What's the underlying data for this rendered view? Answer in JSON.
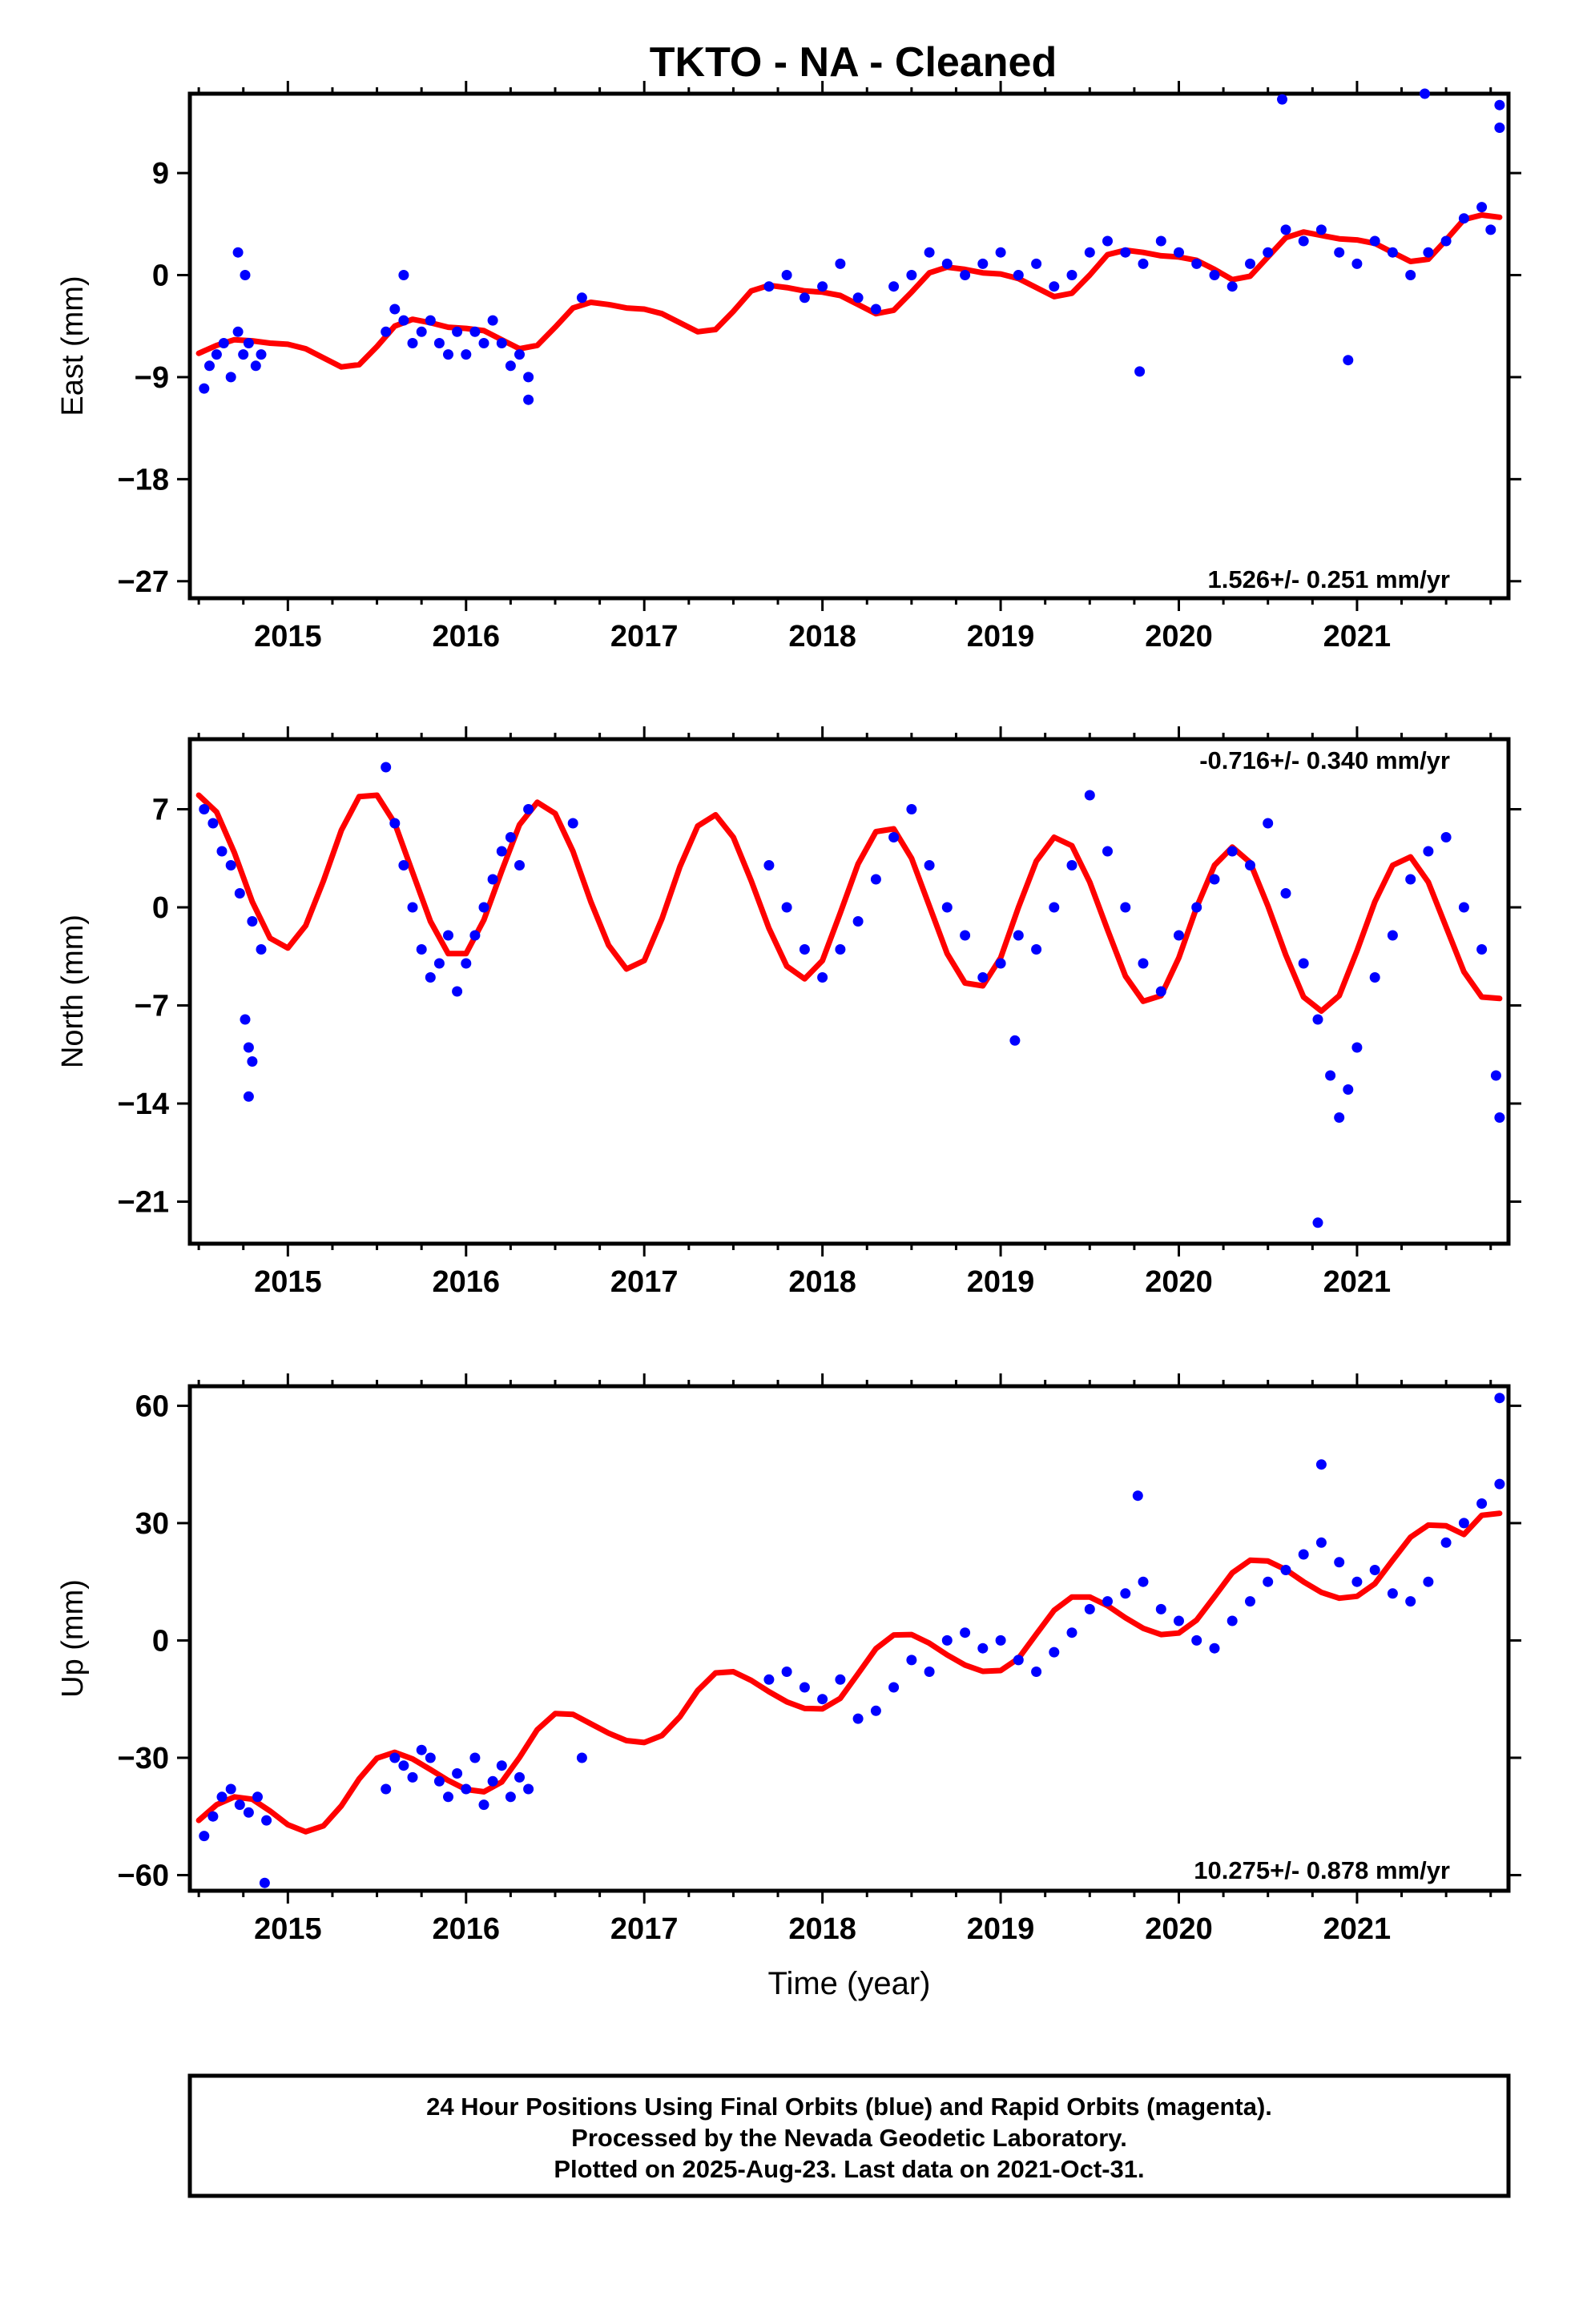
{
  "chart_data": [
    {
      "type": "scatter",
      "title": "TKTO  - NA - Cleaned",
      "ylabel": "East (mm)",
      "xlabel": "",
      "xlim": [
        2014.45,
        2021.85
      ],
      "ylim": [
        -28.5,
        16
      ],
      "xticks": [
        2015,
        2016,
        2017,
        2018,
        2019,
        2020,
        2021
      ],
      "yticks": [
        9,
        0,
        -9,
        -18,
        -27
      ],
      "ytick_labels": [
        "9",
        "0",
        "−9",
        "−18",
        "−27"
      ],
      "annotation": "1.526+/- 0.251 mm/yr",
      "annotation_position": "bottom-right",
      "series": [
        {
          "kind": "points",
          "color": "#0000ff",
          "x": [
            2014.53,
            2014.56,
            2014.6,
            2014.64,
            2014.68,
            2014.72,
            2014.75,
            2014.78,
            2014.82,
            2014.85,
            2014.72,
            2014.76,
            2015.55,
            2015.6,
            2015.65,
            2015.7,
            2015.75,
            2015.8,
            2015.85,
            2015.9,
            2015.95,
            2016.0,
            2016.05,
            2016.1,
            2016.15,
            2016.2,
            2016.25,
            2016.3,
            2016.35,
            2015.65,
            2016.35,
            2016.65,
            2017.7,
            2017.8,
            2017.9,
            2018.0,
            2018.1,
            2018.2,
            2018.3,
            2018.4,
            2018.5,
            2018.6,
            2018.7,
            2018.8,
            2018.9,
            2019.0,
            2019.1,
            2019.2,
            2019.3,
            2019.4,
            2019.5,
            2019.6,
            2019.7,
            2019.8,
            2019.9,
            2020.0,
            2020.1,
            2020.2,
            2020.3,
            2020.4,
            2020.5,
            2020.6,
            2020.7,
            2020.8,
            2020.9,
            2021.0,
            2021.1,
            2021.2,
            2021.3,
            2021.4,
            2021.5,
            2021.6,
            2021.7,
            2021.75,
            2020.58,
            2021.38,
            2021.8,
            2021.8,
            2019.78,
            2020.95
          ],
          "y": [
            -10,
            -8,
            -7,
            -6,
            -9,
            -5,
            -7,
            -6,
            -8,
            -7,
            2,
            0,
            -5,
            -3,
            -4,
            -6,
            -5,
            -4,
            -6,
            -7,
            -5,
            -7,
            -5,
            -6,
            -4,
            -6,
            -8,
            -7,
            -9,
            0,
            -11,
            -2,
            -1,
            0,
            -2,
            -1,
            1,
            -2,
            -3,
            -1,
            0,
            2,
            1,
            0,
            1,
            2,
            0,
            1,
            -1,
            0,
            2,
            3,
            2,
            1,
            3,
            2,
            1,
            0,
            -1,
            1,
            2,
            4,
            3,
            4,
            2,
            1,
            3,
            2,
            0,
            2,
            3,
            5,
            6,
            4,
            15.5,
            16,
            15,
            13,
            -8.5,
            -7.5
          ]
        },
        {
          "kind": "line",
          "color": "#ff0000",
          "x": [
            2014.5,
            2014.6,
            2014.7,
            2014.8,
            2014.9,
            2015.0,
            2015.1,
            2015.2,
            2015.3,
            2015.4,
            2015.5,
            2015.6,
            2015.7,
            2015.8,
            2015.9,
            2016.0,
            2016.1,
            2016.2,
            2016.3,
            2016.4,
            2016.5,
            2016.6,
            2016.7,
            2016.8,
            2016.9,
            2017.0,
            2017.1,
            2017.2,
            2017.3,
            2017.4,
            2017.5,
            2017.6,
            2017.7,
            2017.8,
            2017.9,
            2018.0,
            2018.1,
            2018.2,
            2018.3,
            2018.4,
            2018.5,
            2018.6,
            2018.7,
            2018.8,
            2018.9,
            2019.0,
            2019.1,
            2019.2,
            2019.3,
            2019.4,
            2019.5,
            2019.6,
            2019.7,
            2019.8,
            2019.9,
            2020.0,
            2020.1,
            2020.2,
            2020.3,
            2020.4,
            2020.5,
            2020.6,
            2020.7,
            2020.8,
            2020.9,
            2021.0,
            2021.1,
            2021.2,
            2021.3,
            2021.4,
            2021.5,
            2021.6,
            2021.7,
            2021.8
          ],
          "y": [
            -6.9,
            -6.2,
            -5.7,
            -5.8,
            -6.0,
            -6.1,
            -6.5,
            -7.3,
            -8.1,
            -7.9,
            -6.3,
            -4.5,
            -3.9,
            -4.2,
            -4.6,
            -4.7,
            -4.9,
            -5.7,
            -6.5,
            -6.2,
            -4.6,
            -2.9,
            -2.4,
            -2.6,
            -2.9,
            -3.0,
            -3.4,
            -4.2,
            -5.0,
            -4.8,
            -3.2,
            -1.4,
            -0.9,
            -1.1,
            -1.4,
            -1.5,
            -1.8,
            -2.6,
            -3.4,
            -3.1,
            -1.5,
            0.2,
            0.7,
            0.5,
            0.2,
            0.1,
            -0.3,
            -1.1,
            -1.9,
            -1.6,
            0.0,
            1.8,
            2.2,
            2.0,
            1.7,
            1.6,
            1.3,
            0.5,
            -0.4,
            -0.1,
            1.6,
            3.3,
            3.8,
            3.5,
            3.2,
            3.1,
            2.8,
            2.0,
            1.2,
            1.4,
            3.1,
            4.9,
            5.3,
            5.1
          ]
        }
      ]
    },
    {
      "type": "scatter",
      "title": "",
      "ylabel": "North (mm)",
      "xlabel": "",
      "xlim": [
        2014.45,
        2021.85
      ],
      "ylim": [
        -24,
        12
      ],
      "xticks": [
        2015,
        2016,
        2017,
        2018,
        2019,
        2020,
        2021
      ],
      "yticks": [
        7,
        0,
        -7,
        -14,
        -21
      ],
      "ytick_labels": [
        "7",
        "0",
        "−7",
        "−14",
        "−21"
      ],
      "annotation": "-0.716+/- 0.340 mm/yr",
      "annotation_position": "top-right",
      "series": [
        {
          "kind": "points",
          "color": "#0000ff",
          "x": [
            2014.53,
            2014.58,
            2014.63,
            2014.68,
            2014.73,
            2014.76,
            2014.78,
            2014.8,
            2014.85,
            2015.55,
            2015.6,
            2015.65,
            2015.7,
            2015.75,
            2015.8,
            2015.85,
            2015.9,
            2015.95,
            2016.0,
            2016.05,
            2016.1,
            2016.15,
            2016.2,
            2016.25,
            2016.3,
            2016.35,
            2016.6,
            2017.7,
            2017.8,
            2017.9,
            2018.0,
            2018.1,
            2018.2,
            2018.3,
            2018.4,
            2018.5,
            2018.6,
            2018.7,
            2018.8,
            2018.9,
            2019.0,
            2019.1,
            2019.2,
            2019.3,
            2019.4,
            2019.5,
            2019.6,
            2019.7,
            2019.8,
            2019.9,
            2020.0,
            2020.1,
            2020.2,
            2020.3,
            2020.4,
            2020.5,
            2020.6,
            2020.7,
            2020.78,
            2020.85,
            2020.9,
            2020.95,
            2021.0,
            2021.1,
            2021.2,
            2021.3,
            2021.4,
            2021.5,
            2021.6,
            2021.7,
            2021.78,
            2021.8,
            2014.78,
            2014.8,
            2020.78,
            2019.08
          ],
          "y": [
            7,
            6,
            4,
            3,
            1,
            -8,
            -10,
            -1,
            -3,
            10,
            6,
            3,
            0,
            -3,
            -5,
            -4,
            -2,
            -6,
            -4,
            -2,
            0,
            2,
            4,
            5,
            3,
            7,
            6,
            3,
            0,
            -3,
            -5,
            -3,
            -1,
            2,
            5,
            7,
            3,
            0,
            -2,
            -5,
            -4,
            -2,
            -3,
            0,
            3,
            8,
            4,
            0,
            -4,
            -6,
            -2,
            0,
            2,
            4,
            3,
            6,
            1,
            -4,
            -8,
            -12,
            -15,
            -13,
            -10,
            -5,
            -2,
            2,
            4,
            5,
            0,
            -3,
            -12,
            -15,
            -13.5,
            -11,
            -22.5,
            -9.5
          ]
        },
        {
          "kind": "line",
          "color": "#ff0000",
          "x": [
            2014.5,
            2014.6,
            2014.7,
            2014.8,
            2014.9,
            2015.0,
            2015.1,
            2015.2,
            2015.3,
            2015.4,
            2015.5,
            2015.6,
            2015.7,
            2015.8,
            2015.9,
            2016.0,
            2016.1,
            2016.2,
            2016.3,
            2016.4,
            2016.5,
            2016.6,
            2016.7,
            2016.8,
            2016.9,
            2017.0,
            2017.1,
            2017.2,
            2017.3,
            2017.4,
            2017.5,
            2017.6,
            2017.7,
            2017.8,
            2017.9,
            2018.0,
            2018.1,
            2018.2,
            2018.3,
            2018.4,
            2018.5,
            2018.6,
            2018.7,
            2018.8,
            2018.9,
            2019.0,
            2019.1,
            2019.2,
            2019.3,
            2019.4,
            2019.5,
            2019.6,
            2019.7,
            2019.8,
            2019.9,
            2020.0,
            2020.1,
            2020.2,
            2020.3,
            2020.4,
            2020.5,
            2020.6,
            2020.7,
            2020.8,
            2020.9,
            2021.0,
            2021.1,
            2021.2,
            2021.3,
            2021.4,
            2021.5,
            2021.6,
            2021.7,
            2021.8
          ],
          "y": [
            8.0,
            6.8,
            3.9,
            0.4,
            -2.2,
            -2.9,
            -1.3,
            1.9,
            5.5,
            7.9,
            8.0,
            6.0,
            2.5,
            -1.0,
            -3.3,
            -3.3,
            -0.9,
            2.6,
            5.9,
            7.5,
            6.7,
            4.0,
            0.4,
            -2.7,
            -4.4,
            -3.8,
            -0.8,
            2.9,
            5.8,
            6.6,
            5.0,
            1.9,
            -1.5,
            -4.2,
            -5.1,
            -3.8,
            -0.4,
            3.1,
            5.4,
            5.6,
            3.5,
            0.1,
            -3.3,
            -5.4,
            -5.6,
            -3.6,
            0.0,
            3.3,
            5.0,
            4.4,
            1.8,
            -1.6,
            -4.9,
            -6.7,
            -6.3,
            -3.6,
            0.0,
            3.0,
            4.3,
            3.2,
            0.1,
            -3.4,
            -6.4,
            -7.4,
            -6.3,
            -3.1,
            0.4,
            3.0,
            3.6,
            1.8,
            -1.4,
            -4.6,
            -6.4,
            -6.5
          ]
        }
      ]
    },
    {
      "type": "scatter",
      "title": "",
      "ylabel": "Up (mm)",
      "xlabel": "Time (year)",
      "xlim": [
        2014.45,
        2021.85
      ],
      "ylim": [
        -64,
        65
      ],
      "xticks": [
        2015,
        2016,
        2017,
        2018,
        2019,
        2020,
        2021
      ],
      "yticks": [
        60,
        30,
        0,
        -30,
        -60
      ],
      "ytick_labels": [
        "60",
        "30",
        "0",
        "−30",
        "−60"
      ],
      "annotation": "10.275+/- 0.878 mm/yr",
      "annotation_position": "bottom-right",
      "series": [
        {
          "kind": "points",
          "color": "#0000ff",
          "x": [
            2014.53,
            2014.58,
            2014.63,
            2014.68,
            2014.73,
            2014.78,
            2014.83,
            2014.88,
            2015.55,
            2015.6,
            2015.65,
            2015.7,
            2015.75,
            2015.8,
            2015.85,
            2015.9,
            2015.95,
            2016.0,
            2016.05,
            2016.1,
            2016.15,
            2016.2,
            2016.25,
            2016.3,
            2016.35,
            2016.65,
            2017.7,
            2017.8,
            2017.9,
            2018.0,
            2018.1,
            2018.2,
            2018.3,
            2018.4,
            2018.5,
            2018.6,
            2018.7,
            2018.8,
            2018.9,
            2019.0,
            2019.1,
            2019.2,
            2019.3,
            2019.4,
            2019.5,
            2019.6,
            2019.7,
            2019.8,
            2019.9,
            2020.0,
            2020.1,
            2020.2,
            2020.3,
            2020.4,
            2020.5,
            2020.6,
            2020.7,
            2020.8,
            2020.9,
            2021.0,
            2021.1,
            2021.2,
            2021.3,
            2021.4,
            2021.5,
            2021.6,
            2021.7,
            2021.8,
            2014.87,
            2021.8,
            2020.8,
            2019.77
          ],
          "y": [
            -50,
            -45,
            -40,
            -38,
            -42,
            -44,
            -40,
            -46,
            -38,
            -30,
            -32,
            -35,
            -28,
            -30,
            -36,
            -40,
            -34,
            -38,
            -30,
            -42,
            -36,
            -32,
            -40,
            -35,
            -38,
            -30,
            -10,
            -8,
            -12,
            -15,
            -10,
            -20,
            -18,
            -12,
            -5,
            -8,
            0,
            2,
            -2,
            0,
            -5,
            -8,
            -3,
            2,
            8,
            10,
            12,
            15,
            8,
            5,
            0,
            -2,
            5,
            10,
            15,
            18,
            22,
            25,
            20,
            15,
            18,
            12,
            10,
            15,
            25,
            30,
            35,
            40,
            -62,
            62,
            45,
            37
          ]
        },
        {
          "kind": "line",
          "color": "#ff0000",
          "x": [
            2014.5,
            2014.6,
            2014.7,
            2014.8,
            2014.9,
            2015.0,
            2015.1,
            2015.2,
            2015.3,
            2015.4,
            2015.5,
            2015.6,
            2015.7,
            2015.8,
            2015.9,
            2016.0,
            2016.1,
            2016.2,
            2016.3,
            2016.4,
            2016.5,
            2016.6,
            2016.7,
            2016.8,
            2016.9,
            2017.0,
            2017.1,
            2017.2,
            2017.3,
            2017.4,
            2017.5,
            2017.6,
            2017.7,
            2017.8,
            2017.9,
            2018.0,
            2018.1,
            2018.2,
            2018.3,
            2018.4,
            2018.5,
            2018.6,
            2018.7,
            2018.8,
            2018.9,
            2019.0,
            2019.1,
            2019.2,
            2019.3,
            2019.4,
            2019.5,
            2019.6,
            2019.7,
            2019.8,
            2019.9,
            2020.0,
            2020.1,
            2020.2,
            2020.3,
            2020.4,
            2020.5,
            2020.6,
            2020.7,
            2020.8,
            2020.9,
            2021.0,
            2021.1,
            2021.2,
            2021.3,
            2021.4,
            2021.5,
            2021.6,
            2021.7,
            2021.8
          ],
          "y": [
            -46.0,
            -42.0,
            -40.0,
            -40.6,
            -43.6,
            -47.1,
            -48.9,
            -47.4,
            -42.3,
            -35.4,
            -30.1,
            -28.6,
            -30.3,
            -33.0,
            -35.8,
            -38.1,
            -38.7,
            -36.2,
            -29.9,
            -22.8,
            -18.7,
            -18.9,
            -21.3,
            -23.7,
            -25.6,
            -26.1,
            -24.3,
            -19.5,
            -12.8,
            -8.3,
            -8.0,
            -10.2,
            -13.1,
            -15.7,
            -17.4,
            -17.5,
            -14.8,
            -8.5,
            -2.1,
            1.4,
            1.5,
            -0.7,
            -3.7,
            -6.3,
            -7.9,
            -7.7,
            -4.6,
            1.6,
            7.7,
            11.1,
            11.1,
            8.9,
            5.8,
            3.1,
            1.5,
            1.9,
            5.2,
            11.2,
            17.3,
            20.5,
            20.3,
            18.1,
            15.0,
            12.3,
            10.8,
            11.3,
            14.5,
            20.5,
            26.4,
            29.5,
            29.3,
            27.1,
            32.0,
            32.5
          ]
        }
      ]
    }
  ],
  "footer": {
    "line1": "24 Hour Positions Using Final Orbits (blue) and Rapid Orbits (magenta).",
    "line2": "Processed by the Nevada Geodetic Laboratory.",
    "line3": "Plotted on 2025-Aug-23. Last data on 2021-Oct-31."
  }
}
